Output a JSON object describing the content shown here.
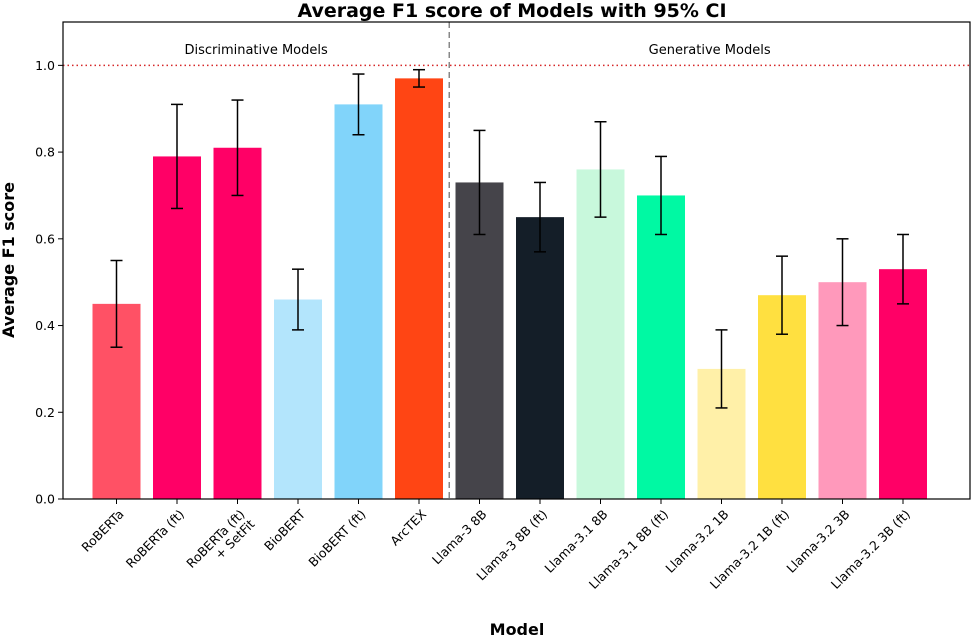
{
  "chart_data": {
    "type": "bar",
    "title": "Average F1 score of Models with 95% CI",
    "xlabel": "Model",
    "ylabel": "Average F1 score",
    "ylim": [
      0,
      1.1
    ],
    "yticks": [
      "0.0",
      "0.2",
      "0.4",
      "0.6",
      "0.8",
      "1.0"
    ],
    "reference_line": {
      "y": 1.0,
      "color": "#d62728",
      "style": "dotted"
    },
    "divider_after_index": 5,
    "regions": [
      {
        "label": "Discriminative Models"
      },
      {
        "label": "Generative Models"
      }
    ],
    "categories": [
      {
        "label": "RoBERTa",
        "value": 0.45,
        "ci": [
          0.35,
          0.55
        ],
        "color": "#ff5165"
      },
      {
        "label": "RoBERTa (ft)",
        "value": 0.79,
        "ci": [
          0.67,
          0.91
        ],
        "color": "#ff0066"
      },
      {
        "label": "RoBERTa (ft)\n+ SetFit",
        "value": 0.81,
        "ci": [
          0.7,
          0.92
        ],
        "color": "#ff0066"
      },
      {
        "label": "BioBERT",
        "value": 0.46,
        "ci": [
          0.39,
          0.53
        ],
        "color": "#b3e5fc"
      },
      {
        "label": "BioBERT (ft)",
        "value": 0.91,
        "ci": [
          0.84,
          0.98
        ],
        "color": "#81d4fa"
      },
      {
        "label": "ArcTEX",
        "value": 0.97,
        "ci": [
          0.95,
          0.99
        ],
        "color": "#ff4514"
      },
      {
        "label": "Llama-3 8B",
        "value": 0.73,
        "ci": [
          0.61,
          0.85
        ],
        "color": "#45444a"
      },
      {
        "label": "Llama-3 8B (ft)",
        "value": 0.65,
        "ci": [
          0.57,
          0.73
        ],
        "color": "#141e28"
      },
      {
        "label": "Llama-3.1 8B",
        "value": 0.76,
        "ci": [
          0.65,
          0.87
        ],
        "color": "#c8f8dc"
      },
      {
        "label": "Llama-3.1 8B (ft)",
        "value": 0.7,
        "ci": [
          0.61,
          0.79
        ],
        "color": "#00f9a3"
      },
      {
        "label": "Llama-3.2 1B",
        "value": 0.3,
        "ci": [
          0.21,
          0.39
        ],
        "color": "#fff0a8"
      },
      {
        "label": "Llama-3.2 1B (ft)",
        "value": 0.47,
        "ci": [
          0.38,
          0.56
        ],
        "color": "#ffe040"
      },
      {
        "label": "Llama-3.2 3B",
        "value": 0.5,
        "ci": [
          0.4,
          0.6
        ],
        "color": "#ff99bb"
      },
      {
        "label": "Llama-3.2 3B (ft)",
        "value": 0.53,
        "ci": [
          0.45,
          0.61
        ],
        "color": "#ff0066"
      }
    ]
  }
}
